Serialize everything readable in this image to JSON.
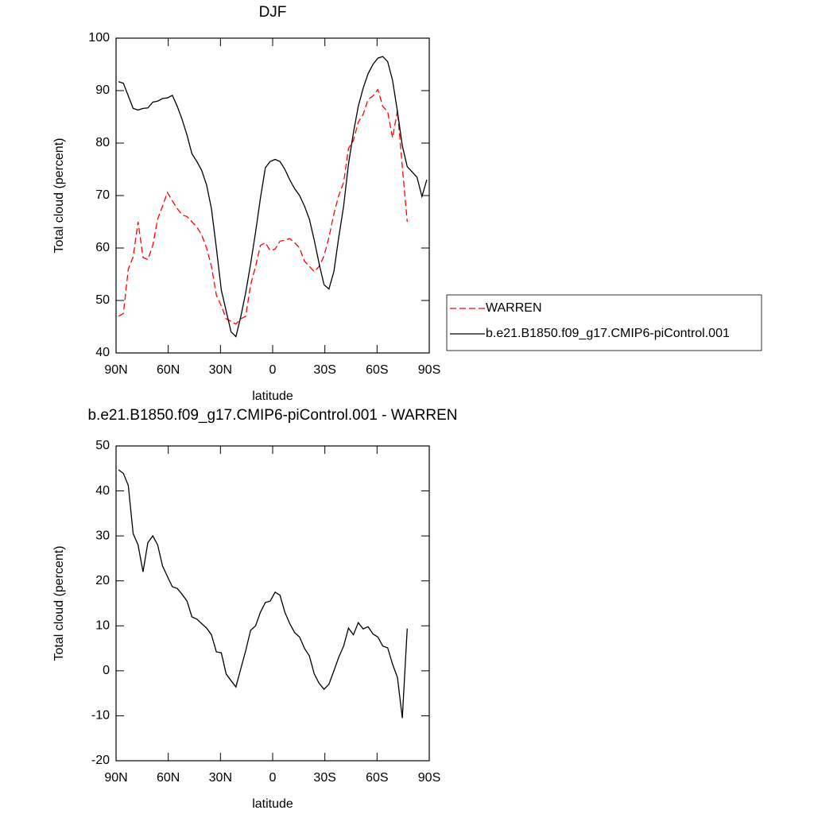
{
  "chart_data": [
    {
      "type": "line",
      "title": "DJF",
      "xlabel": "latitude",
      "ylabel": "Total cloud (percent)",
      "x": [
        88.59,
        85.78,
        82.97,
        80.16,
        77.34,
        74.53,
        71.72,
        68.91,
        66.09,
        63.28,
        60.47,
        57.66,
        54.84,
        52.03,
        49.22,
        46.41,
        43.59,
        40.78,
        37.97,
        35.16,
        32.34,
        29.53,
        26.72,
        23.91,
        21.09,
        18.28,
        15.47,
        12.66,
        9.84,
        7.03,
        4.22,
        1.41,
        -1.41,
        -4.22,
        -7.03,
        -9.84,
        -12.66,
        -15.47,
        -18.28,
        -21.09,
        -23.91,
        -26.72,
        -29.53,
        -32.34,
        -35.16,
        -37.97,
        -40.78,
        -43.59,
        -46.41,
        -49.22,
        -52.03,
        -54.84,
        -57.66,
        -60.47,
        -63.28,
        -66.09,
        -68.91,
        -71.72,
        -74.53,
        -77.34,
        -80.16,
        -82.97,
        -85.78,
        -88.59
      ],
      "series": [
        {
          "name": "WARREN",
          "color": "#ff0000",
          "dashed": true,
          "values": [
            47,
            47.5,
            56,
            58.3,
            65,
            58.2,
            57.8,
            60.5,
            65.5,
            68,
            70.6,
            69,
            67.5,
            66.3,
            66,
            65,
            64,
            62.5,
            60,
            56.5,
            51,
            49,
            46.5,
            46,
            45.5,
            46.5,
            47,
            53,
            56.5,
            60.5,
            61,
            59.5,
            59.8,
            61.3,
            61.5,
            61.8,
            61,
            60,
            57.5,
            56.5,
            55.5,
            56.5,
            58.5,
            62,
            66.5,
            70,
            72.5,
            79,
            80.5,
            84,
            85.5,
            88.3,
            89,
            90.2,
            87,
            86,
            81,
            86.2,
            75.5,
            65,
            null,
            null,
            null,
            null
          ]
        },
        {
          "name": "b.e21.B1850.f09_g17.CMIP6-piControl.001",
          "color": "#000000",
          "dashed": false,
          "values": [
            91.7,
            91.4,
            89,
            86.6,
            86.3,
            86.6,
            86.7,
            87.8,
            88,
            88.5,
            88.6,
            89.1,
            87,
            84.5,
            81.5,
            78,
            76.5,
            74.8,
            72,
            67.5,
            60,
            52,
            48,
            44,
            43.1,
            47,
            51.5,
            57,
            63,
            69.5,
            75.3,
            76.5,
            76.9,
            76.5,
            75,
            73,
            71.3,
            70,
            68,
            65.5,
            61.5,
            57,
            53,
            52.2,
            55.5,
            62,
            68,
            76,
            82,
            87,
            90.5,
            93.2,
            95,
            96.2,
            96.5,
            95.5,
            92,
            86,
            79.5,
            75.5,
            74.5,
            73.5,
            69.8,
            73
          ]
        }
      ],
      "xlim": [
        90,
        -90
      ],
      "xticks": [
        {
          "value": 90,
          "label": "90N"
        },
        {
          "value": 60,
          "label": "60N"
        },
        {
          "value": 30,
          "label": "30N"
        },
        0,
        {
          "value": -30,
          "label": "30S"
        },
        {
          "value": -60,
          "label": "60S"
        },
        {
          "value": -90,
          "label": "90S"
        }
      ],
      "ylim": [
        40,
        100
      ],
      "yticks": [
        40,
        50,
        60,
        70,
        80,
        90,
        100
      ],
      "legend": "right"
    },
    {
      "type": "line",
      "title": "b.e21.B1850.f09_g17.CMIP6-piControl.001 - WARREN",
      "xlabel": "latitude",
      "ylabel": "Total cloud (percent)",
      "x": [
        88.59,
        85.78,
        82.97,
        80.16,
        77.34,
        74.53,
        71.72,
        68.91,
        66.09,
        63.28,
        60.47,
        57.66,
        54.84,
        52.03,
        49.22,
        46.41,
        43.59,
        40.78,
        37.97,
        35.16,
        32.34,
        29.53,
        26.72,
        23.91,
        21.09,
        18.28,
        15.47,
        12.66,
        9.84,
        7.03,
        4.22,
        1.41,
        -1.41,
        -4.22,
        -7.03,
        -9.84,
        -12.66,
        -15.47,
        -18.28,
        -21.09,
        -23.91,
        -26.72,
        -29.53,
        -32.34,
        -35.16,
        -37.97,
        -40.78,
        -43.59,
        -46.41,
        -49.22,
        -52.03,
        -54.84,
        -57.66,
        -60.47,
        -63.28,
        -66.09,
        -68.91,
        -71.72,
        -74.53,
        -77.34,
        -80.16,
        -82.97,
        -85.78,
        -88.59
      ],
      "series": [
        {
          "color": "#000000",
          "dashed": false,
          "values": [
            44.7,
            43.9,
            41.2,
            30.5,
            28,
            22,
            28.5,
            30,
            28,
            23.3,
            21,
            18.7,
            18.3,
            17,
            15.5,
            12,
            11.5,
            10.5,
            9.5,
            8,
            4.2,
            4,
            -0.7,
            -2.2,
            -3.6,
            0.5,
            4.5,
            9,
            10,
            13,
            15.2,
            15.5,
            17.5,
            16.8,
            13,
            10.5,
            8.5,
            7.5,
            5,
            3.3,
            -0.7,
            -2.8,
            -4.1,
            -3,
            0,
            3,
            5.5,
            9.5,
            8,
            10.7,
            9.3,
            9.8,
            8.2,
            7.5,
            5.5,
            5.1,
            1.5,
            -1.5,
            -10.5,
            9.4,
            null,
            null,
            null,
            null
          ]
        }
      ],
      "xlim": [
        90,
        -90
      ],
      "xticks": [
        {
          "value": 90,
          "label": "90N"
        },
        {
          "value": 60,
          "label": "60N"
        },
        {
          "value": 30,
          "label": "30N"
        },
        0,
        {
          "value": -30,
          "label": "30S"
        },
        {
          "value": -60,
          "label": "60S"
        },
        {
          "value": -90,
          "label": "90S"
        }
      ],
      "ylim": [
        -20,
        50
      ],
      "yticks": [
        -20,
        -10,
        0,
        10,
        20,
        30,
        40,
        50
      ]
    }
  ]
}
